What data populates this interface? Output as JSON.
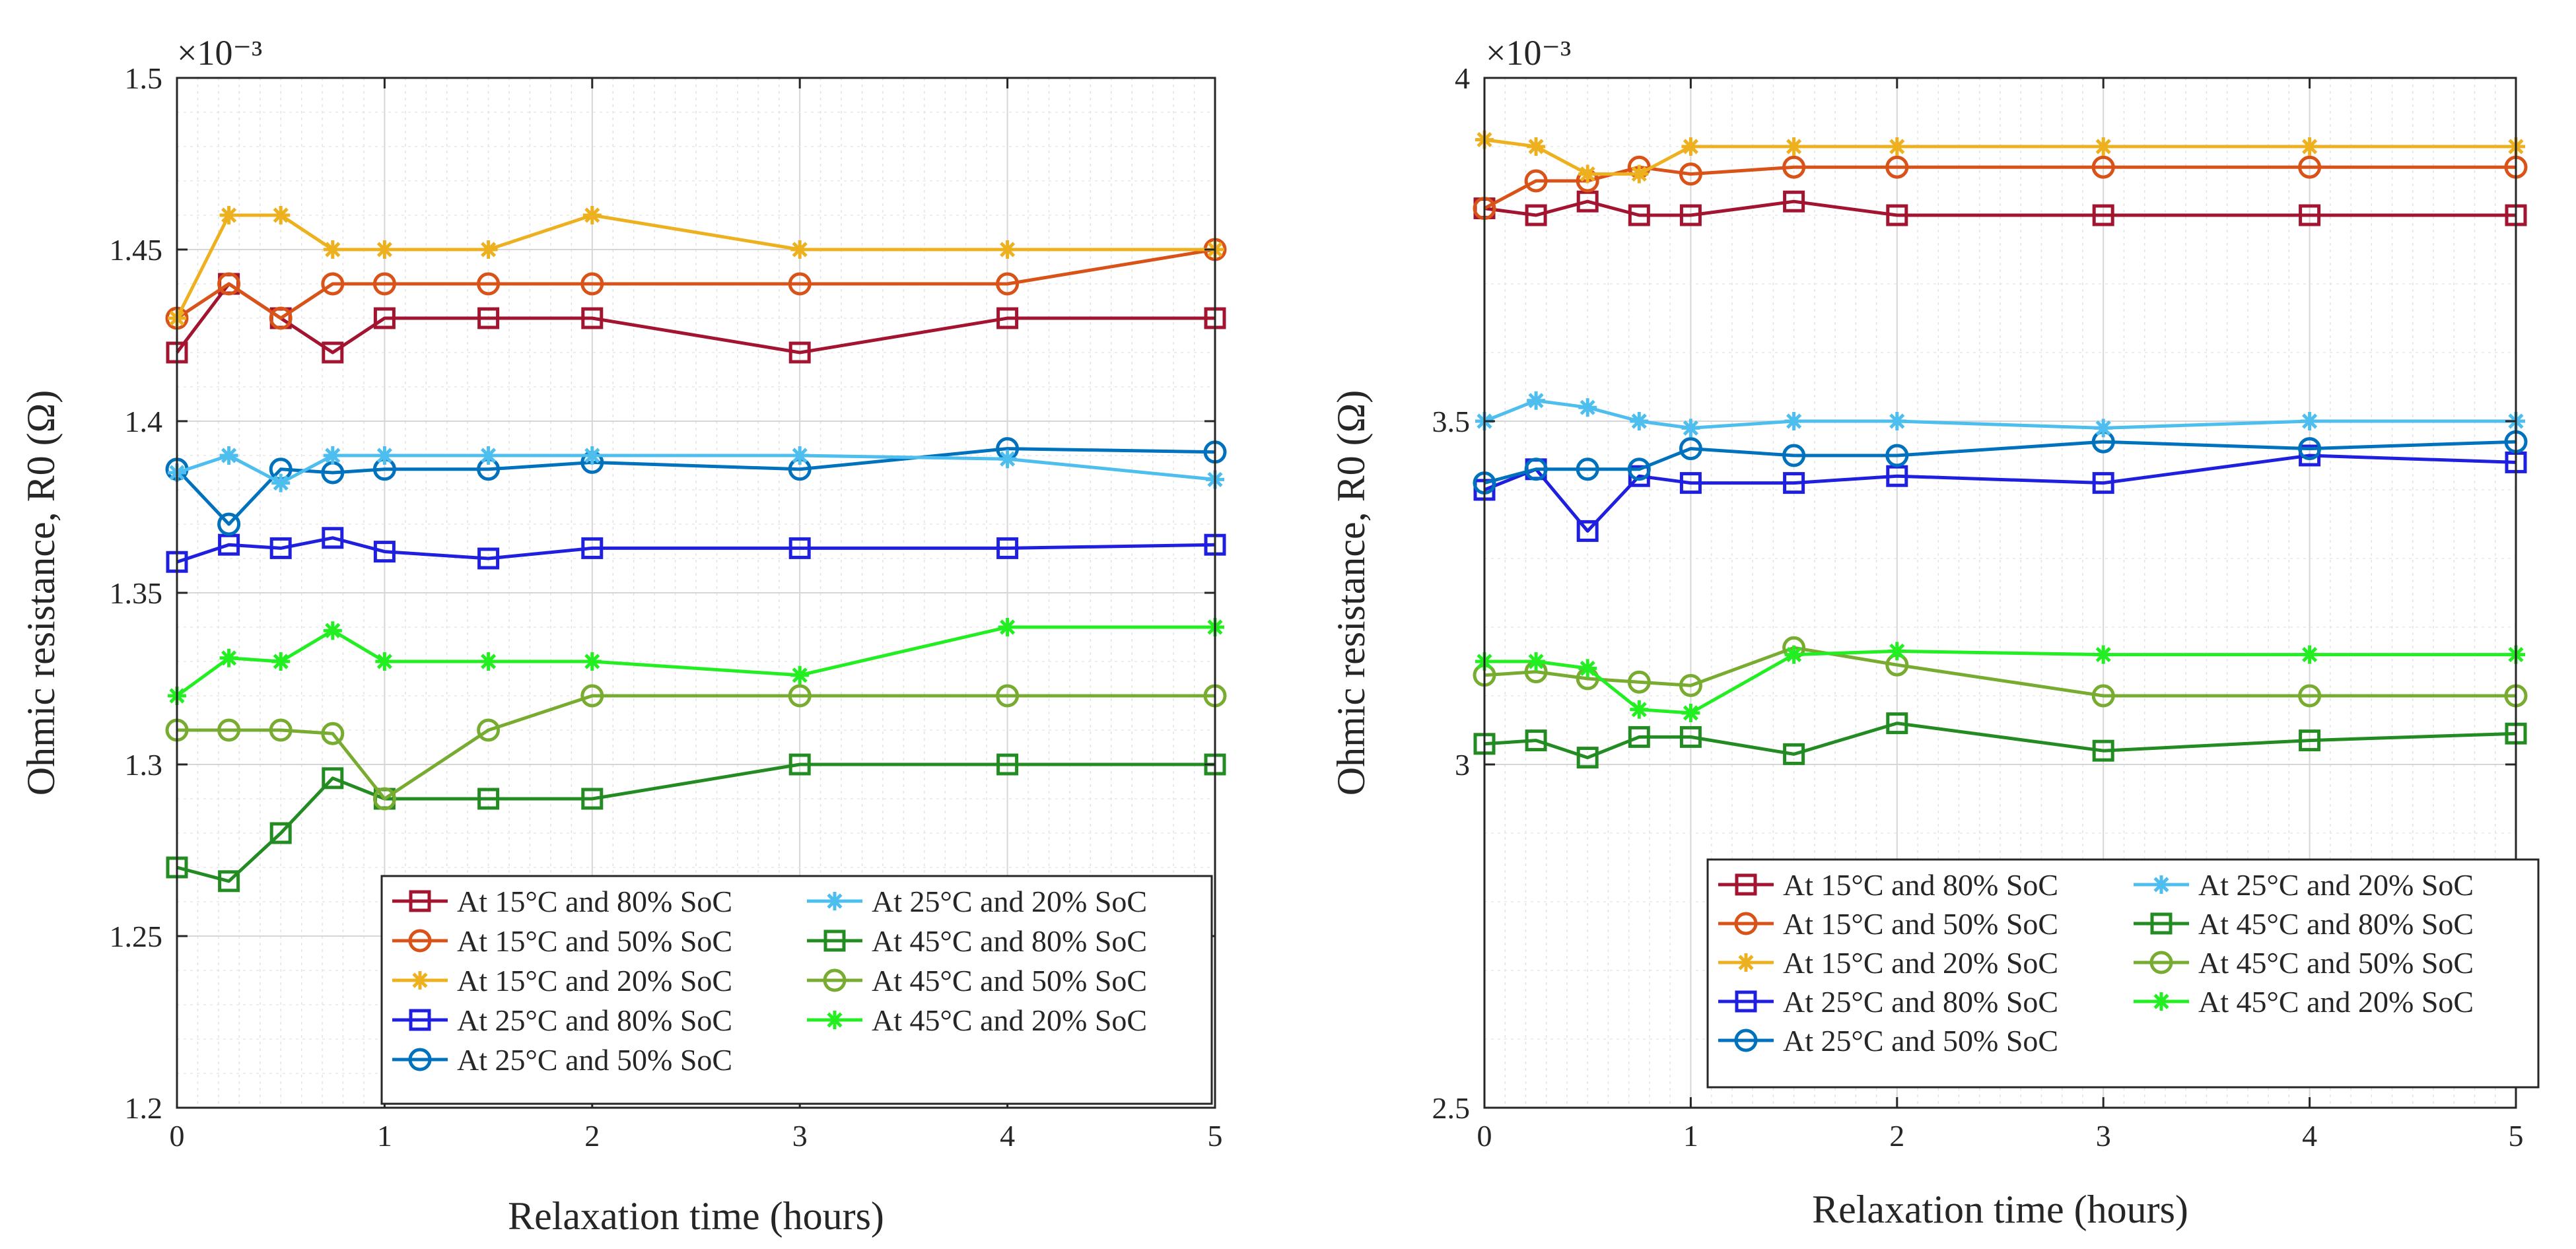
{
  "colors": {
    "15C_80": "#A2142F",
    "15C_50": "#D95319",
    "15C_20": "#EDB120",
    "25C_80": "#1F1FE0",
    "25C_50": "#0072BD",
    "25C_20": "#4DBEEE",
    "45C_80": "#228B22",
    "45C_50": "#77AC30",
    "45C_20": "#22EE22"
  },
  "chart_data": [
    {
      "type": "line",
      "xlabel": "Relaxation time (hours)",
      "ylabel": "Ohmic resistance, R0 (Ω)",
      "exponent_label": "×10⁻³",
      "xlim": [
        0,
        5
      ],
      "ylim": [
        1.2,
        1.5
      ],
      "xticks": [
        0,
        1,
        2,
        3,
        4,
        5
      ],
      "xtick_labels": [
        "0",
        "1",
        "2",
        "3",
        "4",
        "5"
      ],
      "yticks": [
        1.2,
        1.25,
        1.3,
        1.35,
        1.4,
        1.45,
        1.5
      ],
      "ytick_labels": [
        "1.2",
        "1.25",
        "1.3",
        "1.35",
        "1.4",
        "1.45",
        "1.5"
      ],
      "grid": true,
      "legend_position": "bottom-right",
      "x": [
        0,
        0.25,
        0.5,
        0.75,
        1,
        1.5,
        2,
        3,
        4,
        5
      ],
      "series": [
        {
          "key": "15C_80",
          "name": "At 15°C and 80% SoC",
          "marker": "square",
          "values": [
            1.42,
            1.44,
            1.43,
            1.42,
            1.43,
            1.43,
            1.43,
            1.42,
            1.43,
            1.43
          ]
        },
        {
          "key": "15C_50",
          "name": "At 15°C and 50% SoC",
          "marker": "circle",
          "values": [
            1.43,
            1.44,
            1.43,
            1.44,
            1.44,
            1.44,
            1.44,
            1.44,
            1.44,
            1.45
          ]
        },
        {
          "key": "15C_20",
          "name": "At 15°C and 20% SoC",
          "marker": "star",
          "values": [
            1.43,
            1.46,
            1.46,
            1.45,
            1.45,
            1.45,
            1.46,
            1.45,
            1.45,
            1.45
          ]
        },
        {
          "key": "25C_80",
          "name": "At 25°C and 80% SoC",
          "marker": "square",
          "values": [
            1.359,
            1.364,
            1.363,
            1.366,
            1.362,
            1.36,
            1.363,
            1.363,
            1.363,
            1.364
          ]
        },
        {
          "key": "25C_50",
          "name": "At 25°C and 50% SoC",
          "marker": "circle",
          "values": [
            1.386,
            1.37,
            1.386,
            1.385,
            1.386,
            1.386,
            1.388,
            1.386,
            1.392,
            1.391
          ]
        },
        {
          "key": "25C_20",
          "name": "At 25°C and 20% SoC",
          "marker": "star",
          "values": [
            1.385,
            1.39,
            1.382,
            1.39,
            1.39,
            1.39,
            1.39,
            1.39,
            1.389,
            1.383
          ]
        },
        {
          "key": "45C_80",
          "name": "At 45°C and 80% SoC",
          "marker": "square",
          "values": [
            1.27,
            1.266,
            1.28,
            1.296,
            1.29,
            1.29,
            1.29,
            1.3,
            1.3,
            1.3
          ]
        },
        {
          "key": "45C_50",
          "name": "At 45°C and 50% SoC",
          "marker": "circle",
          "values": [
            1.31,
            1.31,
            1.31,
            1.309,
            1.29,
            1.31,
            1.32,
            1.32,
            1.32,
            1.32
          ]
        },
        {
          "key": "45C_20",
          "name": "At 45°C and 20% SoC",
          "marker": "star",
          "values": [
            1.32,
            1.331,
            1.33,
            1.339,
            1.33,
            1.33,
            1.33,
            1.326,
            1.34,
            1.34
          ]
        }
      ]
    },
    {
      "type": "line",
      "xlabel": "Relaxation time (hours)",
      "ylabel": "Ohmic resistance, R0 (Ω)",
      "exponent_label": "×10⁻³",
      "xlim": [
        0,
        5
      ],
      "ylim": [
        2.5,
        4
      ],
      "xticks": [
        0,
        1,
        2,
        3,
        4,
        5
      ],
      "xtick_labels": [
        "0",
        "1",
        "2",
        "3",
        "4",
        "5"
      ],
      "yticks": [
        2.5,
        3,
        3.5,
        4
      ],
      "ytick_labels": [
        "2.5",
        "3",
        "3.5",
        "4"
      ],
      "grid": true,
      "legend_position": "bottom-right",
      "x": [
        0,
        0.25,
        0.5,
        0.75,
        1,
        1.5,
        2,
        3,
        4,
        5
      ],
      "series": [
        {
          "key": "15C_80",
          "name": "At 15°C and 80% SoC",
          "marker": "square",
          "values": [
            3.81,
            3.8,
            3.82,
            3.8,
            3.8,
            3.82,
            3.8,
            3.8,
            3.8,
            3.8
          ]
        },
        {
          "key": "15C_50",
          "name": "At 15°C and 50% SoC",
          "marker": "circle",
          "values": [
            3.81,
            3.85,
            3.85,
            3.87,
            3.86,
            3.87,
            3.87,
            3.87,
            3.87,
            3.87
          ]
        },
        {
          "key": "15C_20",
          "name": "At 15°C and 20% SoC",
          "marker": "star",
          "values": [
            3.91,
            3.9,
            3.86,
            3.86,
            3.9,
            3.9,
            3.9,
            3.9,
            3.9,
            3.9
          ]
        },
        {
          "key": "25C_80",
          "name": "At 25°C and 80% SoC",
          "marker": "square",
          "values": [
            3.4,
            3.43,
            3.34,
            3.42,
            3.41,
            3.41,
            3.42,
            3.41,
            3.45,
            3.44
          ]
        },
        {
          "key": "25C_50",
          "name": "At 25°C and 50% SoC",
          "marker": "circle",
          "values": [
            3.41,
            3.43,
            3.43,
            3.43,
            3.46,
            3.45,
            3.45,
            3.47,
            3.46,
            3.47
          ]
        },
        {
          "key": "25C_20",
          "name": "At 25°C and 20% SoC",
          "marker": "star",
          "values": [
            3.5,
            3.53,
            3.52,
            3.5,
            3.49,
            3.5,
            3.5,
            3.49,
            3.5,
            3.5
          ]
        },
        {
          "key": "45C_80",
          "name": "At 45°C and 80% SoC",
          "marker": "square",
          "values": [
            3.03,
            3.035,
            3.01,
            3.04,
            3.04,
            3.015,
            3.06,
            3.02,
            3.035,
            3.045
          ]
        },
        {
          "key": "45C_50",
          "name": "At 45°C and 50% SoC",
          "marker": "circle",
          "values": [
            3.13,
            3.135,
            3.125,
            3.12,
            3.115,
            3.17,
            3.145,
            3.1,
            3.1,
            3.1
          ]
        },
        {
          "key": "45C_20",
          "name": "At 45°C and 20% SoC",
          "marker": "star",
          "values": [
            3.15,
            3.15,
            3.14,
            3.08,
            3.075,
            3.16,
            3.165,
            3.16,
            3.16,
            3.16
          ]
        }
      ]
    }
  ]
}
